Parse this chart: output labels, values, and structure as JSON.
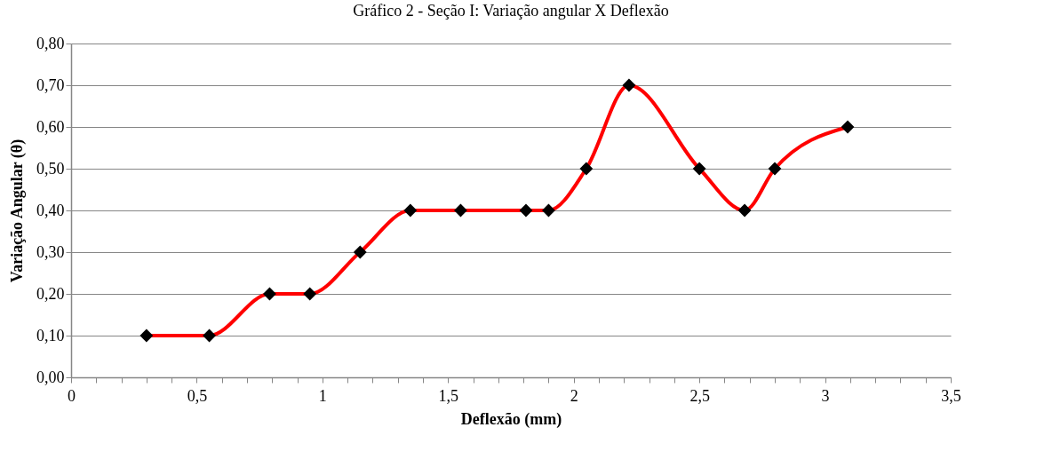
{
  "chart_data": {
    "type": "line",
    "title": "Gráfico 2 - Seção I: Variação angular X Deflexão",
    "xlabel": "Deflexão (mm)",
    "ylabel": "Variação Angular (θ)",
    "x": [
      0.3,
      0.55,
      0.79,
      0.95,
      1.15,
      1.35,
      1.55,
      1.81,
      1.9,
      2.05,
      2.22,
      2.5,
      2.68,
      2.8,
      3.09
    ],
    "series": [
      {
        "color": "#ff0000",
        "values": [
          0.1,
          0.1,
          0.2,
          0.2,
          0.3,
          0.4,
          0.4,
          0.4,
          0.4,
          0.5,
          0.7,
          0.5,
          0.4,
          0.5,
          0.6
        ]
      }
    ],
    "marker": "diamond",
    "grid": "y",
    "xlim": [
      0,
      3.5
    ],
    "xticks": [
      0,
      {
        "value": 0.1,
        "label": null
      },
      {
        "value": 0.2,
        "label": null
      },
      {
        "value": 0.3,
        "label": null
      },
      {
        "value": 0.4,
        "label": null
      },
      {
        "value": 0.5,
        "label": "0,5"
      },
      {
        "value": 0.6,
        "label": null
      },
      {
        "value": 0.7,
        "label": null
      },
      {
        "value": 0.8,
        "label": null
      },
      {
        "value": 0.9,
        "label": null
      },
      1,
      {
        "value": 1.1,
        "label": null
      },
      {
        "value": 1.2,
        "label": null
      },
      {
        "value": 1.3,
        "label": null
      },
      {
        "value": 1.4,
        "label": null
      },
      {
        "value": 1.5,
        "label": "1,5"
      },
      {
        "value": 1.6,
        "label": null
      },
      {
        "value": 1.7,
        "label": null
      },
      {
        "value": 1.8,
        "label": null
      },
      {
        "value": 1.9,
        "label": null
      },
      2,
      {
        "value": 2.1,
        "label": null
      },
      {
        "value": 2.2,
        "label": null
      },
      {
        "value": 2.3,
        "label": null
      },
      {
        "value": 2.4,
        "label": null
      },
      {
        "value": 2.5,
        "label": "2,5"
      },
      {
        "value": 2.6,
        "label": null
      },
      {
        "value": 2.7,
        "label": null
      },
      {
        "value": 2.8,
        "label": null
      },
      {
        "value": 2.9,
        "label": null
      },
      3,
      {
        "value": 3.1,
        "label": null
      },
      {
        "value": 3.2,
        "label": null
      },
      {
        "value": 3.3,
        "label": null
      },
      {
        "value": 3.4,
        "label": null
      },
      {
        "value": 3.5,
        "label": "3,5"
      }
    ],
    "ylim": [
      0,
      0.8
    ],
    "yticks": [
      {
        "value": 0,
        "label": "0,00"
      },
      {
        "value": 0.1,
        "label": "0,10"
      },
      {
        "value": 0.2,
        "label": "0,20"
      },
      {
        "value": 0.3,
        "label": "0,30"
      },
      {
        "value": 0.4,
        "label": "0,40"
      },
      {
        "value": 0.5,
        "label": "0,50"
      },
      {
        "value": 0.6,
        "label": "0,60"
      },
      {
        "value": 0.7,
        "label": "0,70"
      },
      {
        "value": 0.8,
        "label": "0,80"
      }
    ]
  }
}
